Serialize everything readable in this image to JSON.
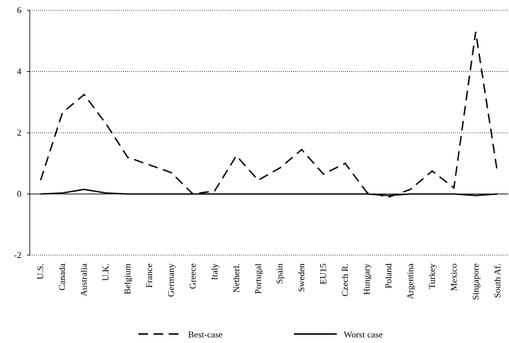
{
  "chart_data": {
    "type": "line",
    "categories": [
      "U.S.",
      "Canada",
      "Australia",
      "U.K.",
      "Belgium",
      "France",
      "Germany",
      "Greece",
      "Italy",
      "Netherl.",
      "Portugal",
      "Spain",
      "Sweden",
      "EU15",
      "Czech R.",
      "Hungary",
      "Poland",
      "Argentina",
      "Turkey",
      "Mexico",
      "Singapore",
      "South Af."
    ],
    "series": [
      {
        "name": "Best-case",
        "color": "#000000",
        "dash": "dashed",
        "values": [
          0.45,
          2.65,
          3.25,
          2.3,
          1.2,
          0.95,
          0.7,
          0.0,
          0.1,
          1.25,
          0.45,
          0.85,
          1.45,
          0.65,
          1.0,
          0.05,
          -0.1,
          0.15,
          0.75,
          0.2,
          5.3,
          0.7
        ]
      },
      {
        "name": "Worst case",
        "color": "#000000",
        "dash": "solid",
        "values": [
          0,
          0.03,
          0.15,
          0.03,
          0,
          0,
          0,
          0,
          0,
          0,
          0,
          0,
          0,
          0,
          0,
          0,
          -0.05,
          0,
          0,
          0,
          -0.05,
          0
        ]
      }
    ],
    "ylim": [
      -2,
      6
    ],
    "yticks": [
      -2,
      0,
      2,
      4,
      6
    ],
    "grid": true,
    "legend": "bottom"
  }
}
